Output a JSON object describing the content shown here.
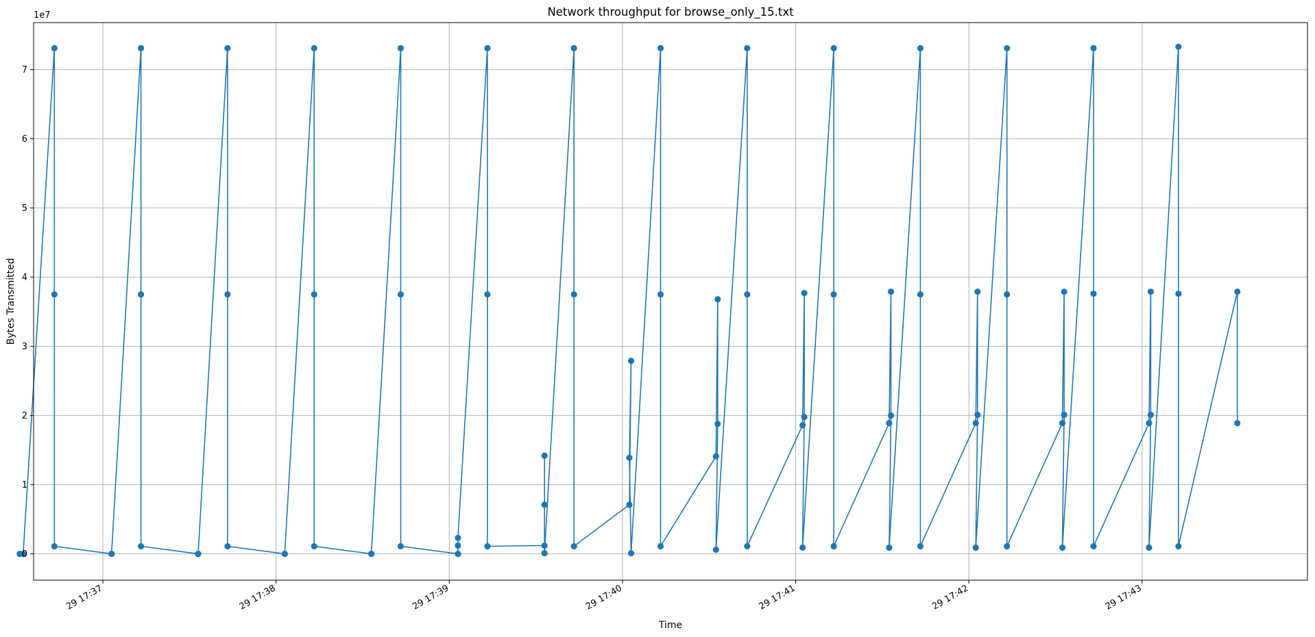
{
  "chart_data": {
    "type": "line",
    "title": "Network throughput for browse_only_15.txt",
    "xlabel": "Time",
    "ylabel": "Bytes Transmitted",
    "y_offset_label": "1e7",
    "y_multiplier": 10000000,
    "grid": true,
    "marker": "circle",
    "colors": {
      "series": "#1f77b4",
      "grid": "#b0b0b0",
      "axes": "#000000"
    },
    "x_unit": "minutes",
    "xlim": [
      36.6,
      43.955
    ],
    "ylim": [
      -0.38,
      7.68
    ],
    "x_ticks": [
      {
        "value": 37,
        "label": "29 17:37"
      },
      {
        "value": 38,
        "label": "29 17:38"
      },
      {
        "value": 39,
        "label": "29 17:39"
      },
      {
        "value": 40,
        "label": "29 17:40"
      },
      {
        "value": 41,
        "label": "29 17:41"
      },
      {
        "value": 42,
        "label": "29 17:42"
      },
      {
        "value": 43,
        "label": "29 17:43"
      }
    ],
    "y_ticks": [
      {
        "value": 0,
        "label": "0"
      },
      {
        "value": 1,
        "label": "1"
      },
      {
        "value": 2,
        "label": "2"
      },
      {
        "value": 3,
        "label": "3"
      },
      {
        "value": 4,
        "label": "4"
      },
      {
        "value": 5,
        "label": "5"
      },
      {
        "value": 6,
        "label": "6"
      },
      {
        "value": 7,
        "label": "7"
      }
    ],
    "series": [
      {
        "x": [
          36.52,
          36.54,
          36.72,
          36.72,
          36.72,
          37.05,
          37.05,
          37.22,
          37.22,
          37.22,
          37.55,
          37.55,
          37.72,
          37.72,
          37.72,
          38.05,
          38.05,
          38.22,
          38.22,
          38.22,
          38.55,
          38.55,
          38.72,
          38.72,
          38.72,
          39.05,
          39.05,
          39.05,
          39.05,
          39.22,
          39.22,
          39.22,
          39.55,
          39.55,
          39.55,
          39.55,
          39.72,
          39.72,
          39.72,
          40.04,
          40.05,
          40.04,
          40.05,
          40.22,
          40.22,
          40.22,
          40.54,
          40.55,
          40.55,
          40.54,
          40.72,
          40.72,
          40.72,
          41.04,
          41.05,
          41.05,
          41.04,
          41.22,
          41.22,
          41.22,
          41.54,
          41.55,
          41.55,
          41.54,
          41.72,
          41.72,
          41.72,
          42.04,
          42.05,
          42.05,
          42.04,
          42.22,
          42.22,
          42.22,
          42.54,
          42.55,
          42.55,
          42.54,
          42.72,
          42.72,
          42.72,
          43.04,
          43.05,
          43.05,
          43.04,
          43.21,
          43.21,
          43.21,
          43.55,
          43.55
        ],
        "y": [
          0.0,
          0.0,
          7.31,
          3.75,
          0.11,
          0.0,
          0.0,
          7.31,
          3.75,
          0.11,
          0.0,
          0.0,
          7.31,
          3.75,
          0.11,
          0.0,
          0.0,
          7.31,
          3.75,
          0.11,
          0.0,
          0.0,
          7.31,
          3.75,
          0.11,
          0.0,
          0.0,
          0.12,
          0.23,
          7.31,
          3.75,
          0.11,
          0.12,
          1.42,
          0.71,
          0.01,
          7.31,
          3.75,
          0.11,
          0.71,
          2.79,
          1.39,
          0.01,
          7.31,
          3.75,
          0.11,
          1.41,
          3.68,
          1.88,
          0.06,
          7.31,
          3.75,
          0.11,
          1.86,
          3.77,
          1.98,
          0.09,
          7.31,
          3.75,
          0.11,
          1.89,
          3.79,
          2.0,
          0.09,
          7.31,
          3.75,
          0.11,
          1.89,
          3.79,
          2.01,
          0.09,
          7.31,
          3.75,
          0.11,
          1.89,
          3.79,
          2.01,
          0.09,
          7.31,
          3.76,
          0.11,
          1.89,
          3.79,
          2.01,
          0.09,
          7.33,
          3.76,
          0.11,
          3.79,
          1.89
        ]
      }
    ]
  }
}
